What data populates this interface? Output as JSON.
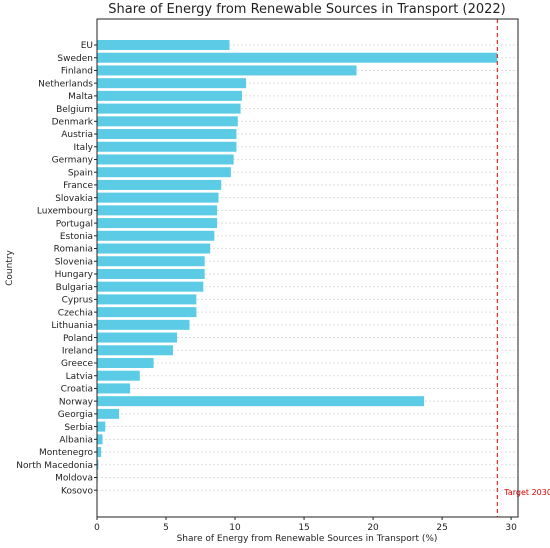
{
  "chart_data": {
    "type": "bar",
    "orientation": "horizontal",
    "title": "Share of Energy from Renewable Sources in Transport (2022)",
    "xlabel": "Share of Energy from Renewable Sources in Transport (%)",
    "ylabel": "Country",
    "xlim": [
      0,
      30.5
    ],
    "xticks": [
      "0",
      "5",
      "10",
      "15",
      "20",
      "25",
      "30"
    ],
    "grid": "horizontal dashed",
    "bar_color": "#5bcbe6",
    "categories": [
      "EU",
      "Sweden",
      "Finland",
      "Netherlands",
      "Malta",
      "Belgium",
      "Denmark",
      "Austria",
      "Italy",
      "Germany",
      "Spain",
      "France",
      "Slovakia",
      "Luxembourg",
      "Portugal",
      "Estonia",
      "Romania",
      "Slovenia",
      "Hungary",
      "Bulgaria",
      "Cyprus",
      "Czechia",
      "Lithuania",
      "Poland",
      "Ireland",
      "Greece",
      "Latvia",
      "Croatia",
      "Norway",
      "Georgia",
      "Serbia",
      "Albania",
      "Montenegro",
      "North Macedonia",
      "Moldova",
      "Kosovo"
    ],
    "values": [
      9.6,
      29.0,
      18.8,
      10.8,
      10.5,
      10.4,
      10.2,
      10.1,
      10.1,
      9.9,
      9.7,
      9.0,
      8.8,
      8.7,
      8.7,
      8.5,
      8.2,
      7.8,
      7.8,
      7.7,
      7.2,
      7.2,
      6.7,
      5.8,
      5.5,
      4.1,
      3.1,
      2.4,
      23.7,
      1.6,
      0.6,
      0.4,
      0.3,
      0.1,
      0.05,
      0.0
    ],
    "target": {
      "label": "Target 2030",
      "value": 29,
      "color": "#dd0000"
    }
  }
}
